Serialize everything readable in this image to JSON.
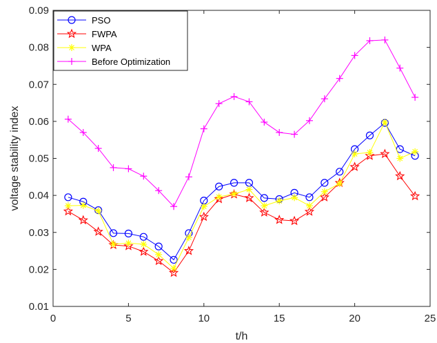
{
  "chart_data": {
    "type": "line",
    "title": "",
    "xlabel": "t/h",
    "ylabel": "voltage stability index",
    "xlim": [
      0,
      25
    ],
    "ylim": [
      0.01,
      0.09
    ],
    "xticks": [
      0,
      5,
      10,
      15,
      20,
      25
    ],
    "yticks": [
      0.01,
      0.02,
      0.03,
      0.04,
      0.05,
      0.06,
      0.07,
      0.08,
      0.09
    ],
    "xtick_labels": [
      "0",
      "5",
      "10",
      "15",
      "20",
      "25"
    ],
    "ytick_labels": [
      "0.01",
      "0.02",
      "0.03",
      "0.04",
      "0.05",
      "0.06",
      "0.07",
      "0.08",
      "0.09"
    ],
    "grid": false,
    "legend_position": "top-left",
    "x": [
      1,
      2,
      3,
      4,
      5,
      6,
      7,
      8,
      9,
      10,
      11,
      12,
      13,
      14,
      15,
      16,
      17,
      18,
      19,
      20,
      21,
      22,
      23,
      24
    ],
    "series": [
      {
        "name": "PSO",
        "color": "#0000ff",
        "marker": "circle",
        "values": [
          0.0395,
          0.0383,
          0.036,
          0.0298,
          0.0297,
          0.0288,
          0.0262,
          0.0226,
          0.0298,
          0.0386,
          0.0424,
          0.0434,
          0.0434,
          0.0393,
          0.039,
          0.0407,
          0.0395,
          0.0434,
          0.0464,
          0.0525,
          0.0562,
          0.0596,
          0.0525,
          0.0507
        ]
      },
      {
        "name": "FWPA",
        "color": "#ff0000",
        "marker": "star",
        "values": [
          0.0357,
          0.0333,
          0.0302,
          0.0266,
          0.0263,
          0.0248,
          0.0223,
          0.0191,
          0.025,
          0.0342,
          0.039,
          0.0403,
          0.0393,
          0.0354,
          0.0334,
          0.0331,
          0.0356,
          0.0395,
          0.0434,
          0.0477,
          0.0507,
          0.0512,
          0.0452,
          0.0398
        ]
      },
      {
        "name": "WPA",
        "color": "#ffff00",
        "marker": "asterisk",
        "values": [
          0.0372,
          0.0373,
          0.0358,
          0.0268,
          0.0271,
          0.0268,
          0.024,
          0.0203,
          0.0286,
          0.037,
          0.0396,
          0.0404,
          0.0416,
          0.0372,
          0.0385,
          0.0394,
          0.0372,
          0.041,
          0.0432,
          0.0512,
          0.0516,
          0.0598,
          0.05,
          0.0518
        ]
      },
      {
        "name": "Before Optimization",
        "color": "#ff00ff",
        "marker": "plus",
        "values": [
          0.0606,
          0.057,
          0.0527,
          0.0475,
          0.0472,
          0.0452,
          0.0413,
          0.037,
          0.045,
          0.058,
          0.0648,
          0.0667,
          0.0653,
          0.0598,
          0.057,
          0.0565,
          0.0602,
          0.0661,
          0.0716,
          0.0778,
          0.0818,
          0.082,
          0.0744,
          0.0665
        ]
      }
    ]
  }
}
